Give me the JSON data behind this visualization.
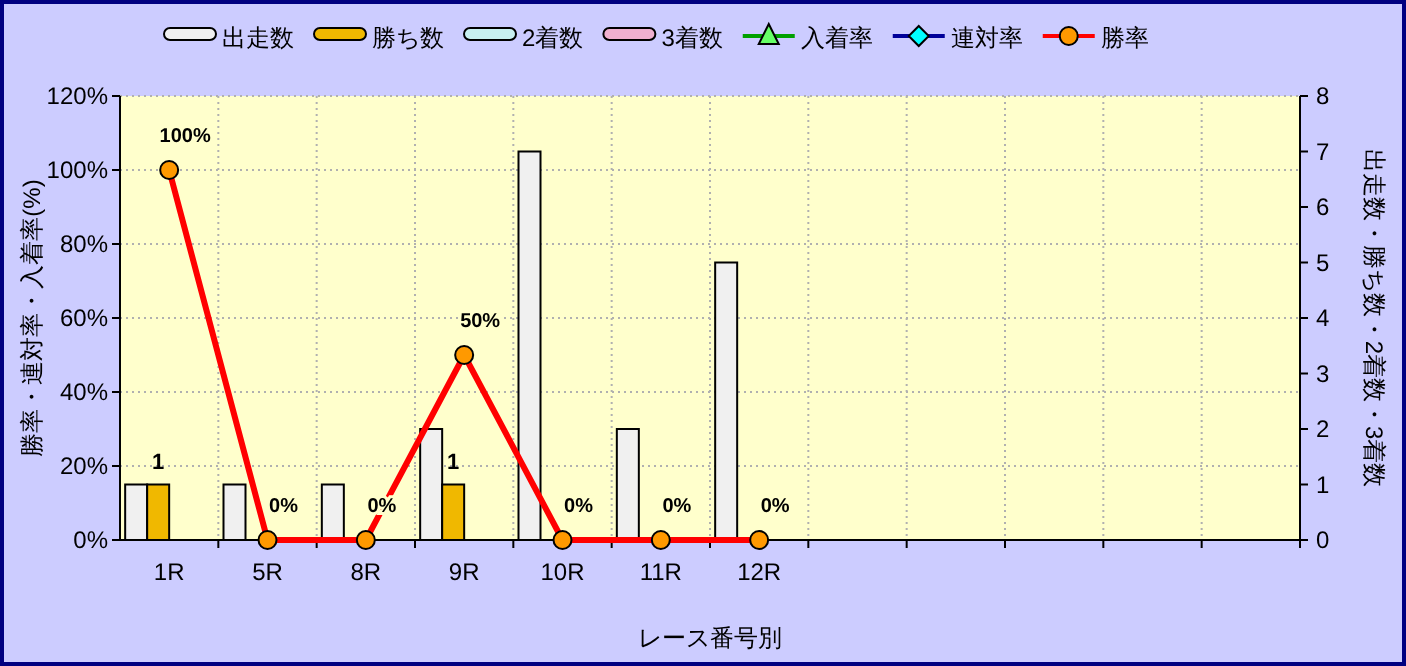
{
  "chart_data": {
    "type": "bar",
    "xlabel": "レース番号別",
    "ylabel": "勝率・連対率・入着率(%)",
    "y2label": "出走数・勝ち数・2着数・3着数",
    "categories": [
      "1R",
      "5R",
      "8R",
      "9R",
      "10R",
      "11R",
      "12R",
      null,
      null,
      null,
      null,
      null
    ],
    "series": [
      {
        "name": "出走数",
        "axis": "y2",
        "color": "#f0f0f0",
        "values": [
          1,
          1,
          1,
          2,
          7,
          2,
          5,
          null,
          null,
          null,
          null,
          null
        ]
      },
      {
        "name": "勝ち数",
        "axis": "y2",
        "color": "#f0b800",
        "values": [
          1,
          0,
          0,
          1,
          0,
          0,
          0,
          null,
          null,
          null,
          null,
          null
        ],
        "value_labels": [
          "1",
          null,
          null,
          "1",
          null,
          null,
          null,
          null,
          null,
          null,
          null,
          null
        ]
      },
      {
        "name": "2着数",
        "axis": "y2",
        "color": "#c8f0f0",
        "values": [
          0,
          0,
          0,
          0,
          0,
          0,
          0,
          null,
          null,
          null,
          null,
          null
        ]
      },
      {
        "name": "3着数",
        "axis": "y2",
        "color": "#f0b0d0",
        "values": [
          0,
          0,
          0,
          0,
          0,
          0,
          0,
          null,
          null,
          null,
          null,
          null
        ]
      },
      {
        "name": "入着率",
        "type": "line",
        "axis": "y",
        "color": "#00a000",
        "marker": "triangle",
        "values": [
          null,
          null,
          null,
          null,
          null,
          null,
          null,
          null,
          null,
          null,
          null,
          null
        ]
      },
      {
        "name": "連対率",
        "type": "line",
        "axis": "y",
        "color": "#000099",
        "marker": "diamond",
        "values": [
          null,
          null,
          null,
          null,
          null,
          null,
          null,
          null,
          null,
          null,
          null,
          null
        ]
      },
      {
        "name": "勝率",
        "type": "line",
        "axis": "y",
        "color": "#ff0000",
        "marker": "circle",
        "values": [
          100,
          0,
          0,
          50,
          0,
          0,
          0,
          null,
          null,
          null,
          null,
          null
        ],
        "value_labels": [
          "100%",
          "0%",
          "0%",
          "50%",
          "0%",
          "0%",
          "0%",
          null,
          null,
          null,
          null,
          null
        ]
      }
    ],
    "ylim": [
      0,
      120
    ],
    "yticks": [
      {
        "value": 0,
        "label": "0%"
      },
      {
        "value": 20,
        "label": "20%"
      },
      {
        "value": 40,
        "label": "40%"
      },
      {
        "value": 60,
        "label": "60%"
      },
      {
        "value": 80,
        "label": "80%"
      },
      {
        "value": 100,
        "label": "100%"
      },
      {
        "value": 120,
        "label": "120%"
      }
    ],
    "y2lim": [
      0,
      8
    ],
    "y2ticks": [
      0,
      1,
      2,
      3,
      4,
      5,
      6,
      7,
      8
    ],
    "grid": true,
    "legend": "top"
  }
}
